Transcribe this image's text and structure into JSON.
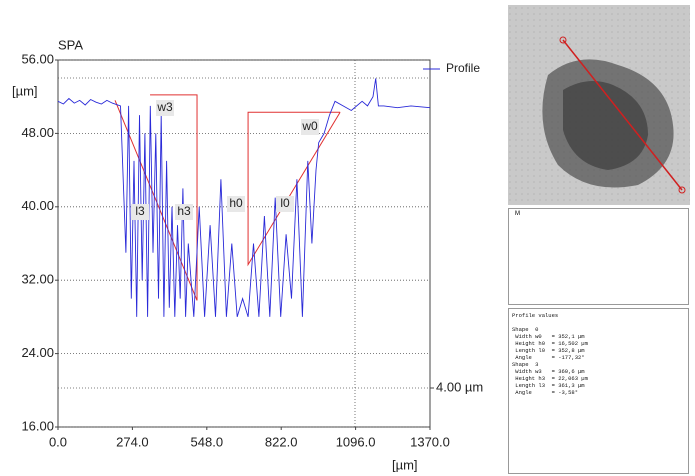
{
  "chart_data": {
    "type": "line",
    "title": "SPA",
    "y_label": "[µm]",
    "x_label": "[µm]",
    "xlim": [
      0,
      1370
    ],
    "ylim": [
      16,
      56
    ],
    "xticks": [
      {
        "value": 0,
        "label": "0.0"
      },
      {
        "value": 274,
        "label": "274.0"
      },
      {
        "value": 548,
        "label": "548.0"
      },
      {
        "value": 822,
        "label": "822.0"
      },
      {
        "value": 1096,
        "label": "1096.0"
      },
      {
        "value": 1370,
        "label": "1370.0"
      }
    ],
    "yticks": [
      {
        "value": 16,
        "label": "16.00"
      },
      {
        "value": 24,
        "label": "24.00"
      },
      {
        "value": 32,
        "label": "32.00"
      },
      {
        "value": 40,
        "label": "40.00"
      },
      {
        "value": 48,
        "label": "48.00"
      },
      {
        "value": 56,
        "label": "56.00"
      }
    ],
    "grid": true,
    "series": [
      {
        "name": "Profile",
        "color": "#2a2ad8",
        "x": [
          0,
          20,
          40,
          60,
          80,
          100,
          120,
          140,
          160,
          180,
          200,
          230,
          250,
          260,
          270,
          280,
          290,
          300,
          310,
          320,
          330,
          340,
          350,
          360,
          370,
          380,
          390,
          400,
          410,
          420,
          430,
          440,
          450,
          460,
          470,
          480,
          500,
          520,
          540,
          560,
          580,
          600,
          620,
          640,
          660,
          680,
          700,
          720,
          740,
          760,
          780,
          800,
          820,
          840,
          860,
          880,
          900,
          920,
          935,
          950,
          960,
          980,
          1000,
          1020,
          1050,
          1080,
          1100,
          1120,
          1140,
          1160,
          1170,
          1180,
          1200,
          1250,
          1300,
          1370
        ],
        "values": [
          51.5,
          51.2,
          51.8,
          51.3,
          51.6,
          51.1,
          51.7,
          51.4,
          51.2,
          51.6,
          51.3,
          51,
          35,
          51,
          30,
          45,
          28,
          50,
          32,
          48,
          28,
          51,
          35,
          48,
          30,
          50,
          28,
          45,
          29,
          40,
          28,
          38,
          30,
          42,
          28,
          36,
          28,
          40,
          28,
          38,
          28,
          43,
          28,
          36,
          28,
          30,
          28,
          36,
          28,
          39,
          28,
          41,
          28,
          37,
          30,
          43,
          28,
          45,
          36,
          44,
          47,
          48,
          50,
          51.5,
          51,
          50.5,
          51,
          51.5,
          51,
          52,
          54,
          51,
          51,
          50.8,
          51,
          50.8
        ]
      }
    ],
    "shapes": [
      {
        "color": "#e03030",
        "x": [
          210,
          512,
          512,
          339
        ],
        "y": [
          51.6,
          29.8,
          52.2,
          52.2
        ]
      },
      {
        "color": "#e03030",
        "x": [
          1039,
          700,
          700,
          1039
        ],
        "y": [
          50.3,
          33.7,
          50.3,
          50.3
        ]
      }
    ],
    "annotations": [
      "w3",
      "l3",
      "h3",
      "h0",
      "l0",
      "w0"
    ],
    "scale_label": "4.00 µm",
    "legend": "top-right"
  },
  "panel": {
    "legend_text": "M",
    "lines": [
      "Profile values",
      "",
      "Shape  0",
      " Width w0   = 352,1 µm",
      " Height h0  = 16,502 µm",
      " Length l0  = 352,8 µm",
      " Angle      = -177,32°",
      "Shape  3",
      " Width w3   = 360,6 µm",
      " Height h3  = 22,063 µm",
      " Length l3  = 361,3 µm",
      " Angle      = -3,58°"
    ]
  }
}
